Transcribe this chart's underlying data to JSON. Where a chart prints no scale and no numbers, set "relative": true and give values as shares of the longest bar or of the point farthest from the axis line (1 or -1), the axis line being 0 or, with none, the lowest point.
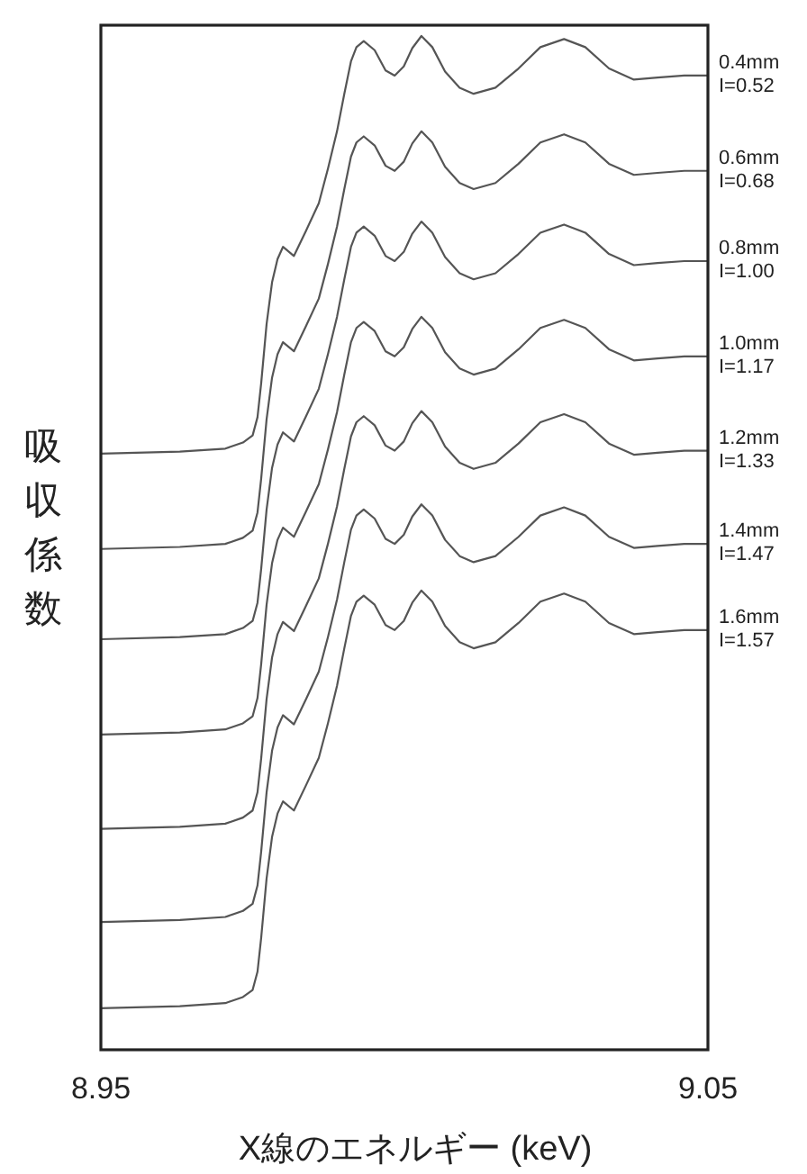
{
  "chart_data": {
    "type": "line",
    "relative": true,
    "xlabel": "X線のエネルギー (keV)",
    "ylabel": "吸収係数",
    "xlim": [
      8.95,
      9.05
    ],
    "xticks": [
      8.95,
      9.05
    ],
    "x": [
      8.95,
      8.963,
      8.9705,
      8.9734,
      8.975,
      8.9758,
      8.9764,
      8.9773,
      8.9782,
      8.9791,
      8.98,
      8.9818,
      8.9838,
      8.9859,
      8.9874,
      8.9889,
      8.9901,
      8.9912,
      8.9921,
      8.9933,
      8.9951,
      8.9969,
      8.9984,
      8.9999,
      9.0013,
      9.0028,
      9.0046,
      9.0067,
      9.0091,
      9.0114,
      9.015,
      9.0188,
      9.0224,
      9.0263,
      9.0298,
      9.0337,
      9.0378,
      9.0417,
      9.0461,
      9.05
    ],
    "series": [
      {
        "name": "0.4mm I=0.52",
        "color": "#555555",
        "values": [
          0.588,
          0.59,
          0.593,
          0.599,
          0.606,
          0.624,
          0.657,
          0.716,
          0.757,
          0.78,
          0.792,
          0.783,
          0.808,
          0.835,
          0.869,
          0.906,
          0.943,
          0.975,
          0.989,
          0.995,
          0.986,
          0.966,
          0.961,
          0.97,
          0.988,
          1.0,
          0.989,
          0.965,
          0.949,
          0.943,
          0.949,
          0.968,
          0.989,
          0.997,
          0.989,
          0.968,
          0.957,
          0.959,
          0.961,
          0.961
        ]
      },
      {
        "name": "0.6mm I=0.68",
        "color": "#555555",
        "values": [
          0.494,
          0.496,
          0.499,
          0.505,
          0.512,
          0.53,
          0.563,
          0.622,
          0.663,
          0.686,
          0.698,
          0.689,
          0.714,
          0.741,
          0.775,
          0.812,
          0.849,
          0.881,
          0.895,
          0.901,
          0.892,
          0.872,
          0.867,
          0.876,
          0.894,
          0.906,
          0.895,
          0.871,
          0.855,
          0.849,
          0.855,
          0.874,
          0.895,
          0.903,
          0.895,
          0.874,
          0.863,
          0.865,
          0.867,
          0.867
        ]
      },
      {
        "name": "0.8mm I=1.00",
        "color": "#555555",
        "values": [
          0.405,
          0.407,
          0.41,
          0.416,
          0.423,
          0.441,
          0.474,
          0.533,
          0.574,
          0.597,
          0.609,
          0.6,
          0.625,
          0.652,
          0.686,
          0.723,
          0.76,
          0.792,
          0.806,
          0.812,
          0.803,
          0.783,
          0.778,
          0.787,
          0.805,
          0.817,
          0.806,
          0.782,
          0.766,
          0.76,
          0.766,
          0.785,
          0.806,
          0.814,
          0.806,
          0.785,
          0.774,
          0.776,
          0.778,
          0.778
        ]
      },
      {
        "name": "1.0mm I=1.17",
        "color": "#555555",
        "values": [
          0.311,
          0.313,
          0.316,
          0.322,
          0.329,
          0.347,
          0.38,
          0.439,
          0.48,
          0.503,
          0.515,
          0.506,
          0.531,
          0.558,
          0.592,
          0.629,
          0.666,
          0.698,
          0.712,
          0.718,
          0.709,
          0.689,
          0.684,
          0.693,
          0.711,
          0.723,
          0.712,
          0.688,
          0.672,
          0.666,
          0.672,
          0.691,
          0.712,
          0.72,
          0.712,
          0.691,
          0.68,
          0.682,
          0.684,
          0.684
        ]
      },
      {
        "name": "1.2mm I=1.33",
        "color": "#555555",
        "values": [
          0.218,
          0.22,
          0.223,
          0.229,
          0.236,
          0.254,
          0.287,
          0.346,
          0.387,
          0.41,
          0.422,
          0.413,
          0.438,
          0.465,
          0.499,
          0.536,
          0.573,
          0.605,
          0.619,
          0.625,
          0.616,
          0.596,
          0.591,
          0.6,
          0.618,
          0.63,
          0.619,
          0.595,
          0.579,
          0.573,
          0.579,
          0.598,
          0.619,
          0.627,
          0.619,
          0.598,
          0.587,
          0.589,
          0.591,
          0.591
        ]
      },
      {
        "name": "1.4mm I=1.47",
        "color": "#555555",
        "values": [
          0.126,
          0.128,
          0.131,
          0.137,
          0.144,
          0.162,
          0.195,
          0.254,
          0.295,
          0.318,
          0.33,
          0.321,
          0.346,
          0.373,
          0.407,
          0.444,
          0.481,
          0.513,
          0.527,
          0.533,
          0.524,
          0.504,
          0.499,
          0.508,
          0.526,
          0.538,
          0.527,
          0.503,
          0.487,
          0.481,
          0.487,
          0.506,
          0.527,
          0.535,
          0.527,
          0.506,
          0.495,
          0.497,
          0.499,
          0.499
        ]
      },
      {
        "name": "1.6mm I=1.57",
        "color": "#555555",
        "values": [
          0.041,
          0.043,
          0.046,
          0.052,
          0.059,
          0.077,
          0.11,
          0.169,
          0.21,
          0.233,
          0.245,
          0.236,
          0.261,
          0.288,
          0.322,
          0.359,
          0.396,
          0.428,
          0.442,
          0.448,
          0.439,
          0.419,
          0.414,
          0.423,
          0.441,
          0.453,
          0.442,
          0.418,
          0.402,
          0.396,
          0.402,
          0.421,
          0.442,
          0.45,
          0.442,
          0.421,
          0.41,
          0.412,
          0.414,
          0.414
        ]
      }
    ]
  }
}
